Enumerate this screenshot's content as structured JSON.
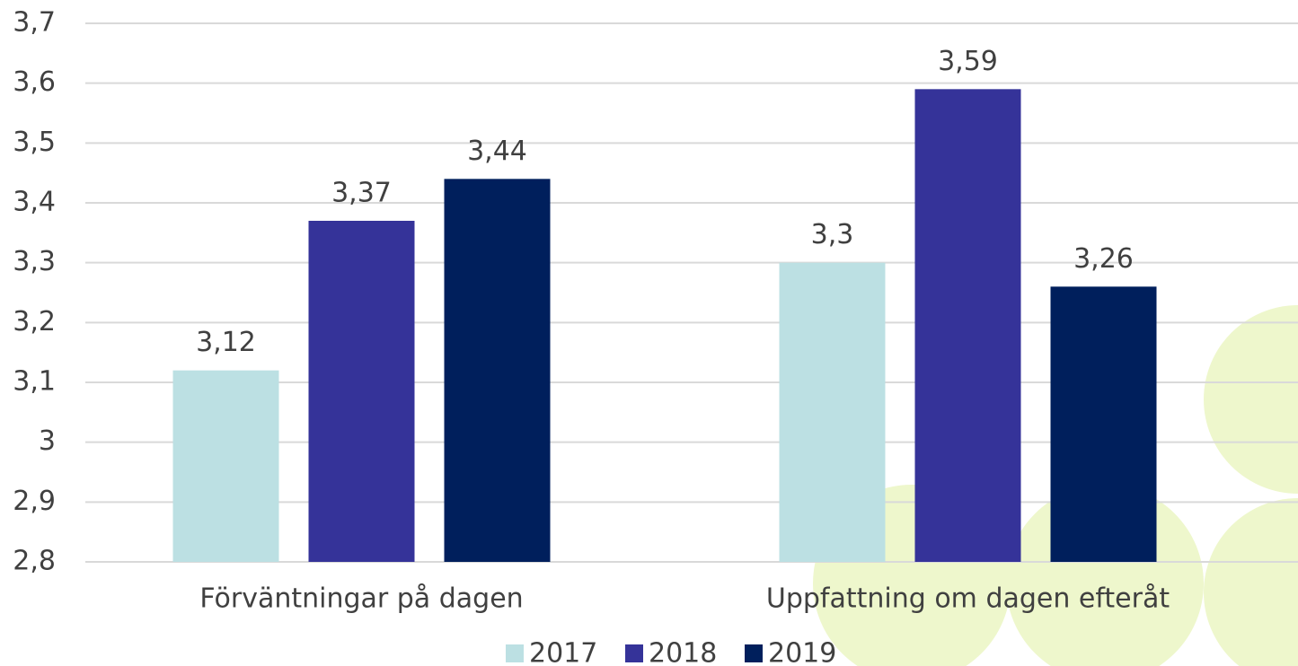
{
  "chart_data": {
    "type": "bar",
    "categories": [
      "Förväntningar på dagen",
      "Uppfattning om dagen efteråt"
    ],
    "series": [
      {
        "name": "2017",
        "color": "#bce0e3",
        "values": [
          3.12,
          3.3
        ],
        "value_labels": [
          "3,12",
          "3,3"
        ]
      },
      {
        "name": "2018",
        "color": "#353399",
        "values": [
          3.37,
          3.59
        ],
        "value_labels": [
          "3,37",
          "3,59"
        ]
      },
      {
        "name": "2019",
        "color": "#001f5c",
        "values": [
          3.44,
          3.26
        ],
        "value_labels": [
          "3,44",
          "3,26"
        ]
      }
    ],
    "ylim": [
      2.8,
      3.7
    ],
    "yticks": [
      {
        "value": 2.8,
        "label": "2,8"
      },
      {
        "value": 2.9,
        "label": "2,9"
      },
      3,
      {
        "value": 3.1,
        "label": "3,1"
      },
      {
        "value": 3.2,
        "label": "3,2"
      },
      {
        "value": 3.3,
        "label": "3,3"
      },
      {
        "value": 3.4,
        "label": "3,4"
      },
      {
        "value": 3.5,
        "label": "3,5"
      },
      {
        "value": 3.6,
        "label": "3,6"
      },
      {
        "value": 3.7,
        "label": "3,7"
      }
    ],
    "grid": true,
    "legend": "bottom"
  }
}
